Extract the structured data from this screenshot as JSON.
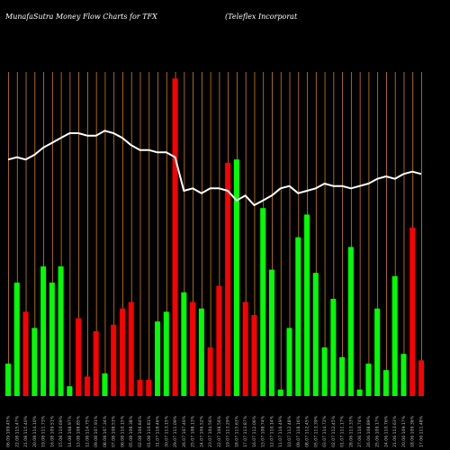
{
  "chart_data": {
    "type": "bar",
    "title": "MunafaSutra  Money Flow  Charts for TFX",
    "subtitle": "(Teleflex Incorporat",
    "colors": {
      "up": "#00ff00",
      "down": "#ff0000",
      "grid": "#d2801a",
      "line": "#ffffff",
      "background": "#000000"
    },
    "grid": true,
    "ylim": [
      0,
      100
    ],
    "categories": [
      "06.09 109.45%",
      "22.08 115.47%",
      "21.08 115.40%",
      "20.08 114.10%",
      "19.08 111.73%",
      "16.08 109.51%",
      "15.08 110.69%",
      "14.08 108.97%",
      "13.08 108.85%",
      "12.08 114.75%",
      "09.08 107.91%",
      "08.08 107.34%",
      "07.08 108.53%",
      "06.08 110.15%",
      "05.08 108.38%",
      "02.08 106.84%",
      "01.08 110.81%",
      "31.07 118.46%",
      "30.07 113.15%",
      "29.07 111.09%",
      "26.07 107.46%",
      "25.07 108.13%",
      "24.07 106.52%",
      "23.07 104.56%",
      "22.07 108.56%",
      "19.07 113.29%",
      "18.07 115.63%",
      "17.07 113.87%",
      "16.07 112.06%",
      "15.07 108.74%",
      "12.07 110.14%",
      "11.07 116.49%",
      "10.07 112.48%",
      "09.07 118.16%",
      "08.07 112.45%",
      "05.07 113.39%",
      "03.07 114.72%",
      "02.07 112.45%",
      "01.07 111.17%",
      "28.06 113.33%",
      "27.06 110.74%",
      "26.06 108.89%",
      "25.06 109.17%",
      "24.06 110.76%",
      "21.06 113.63%",
      "20.06 109.17%",
      "18.06 109.36%",
      "17.06 111.48%"
    ],
    "values": [
      10,
      35,
      26,
      21,
      40,
      35,
      40,
      3,
      24,
      6,
      20,
      7,
      22,
      27,
      29,
      5,
      5,
      23,
      26,
      98,
      32,
      29,
      27,
      15,
      34,
      72,
      73,
      29,
      25,
      58,
      39,
      2,
      21,
      49,
      56,
      38,
      15,
      30,
      12,
      46,
      2,
      10,
      27,
      8,
      37,
      13,
      52,
      11
    ],
    "directions": [
      "up",
      "up",
      "down",
      "up",
      "up",
      "up",
      "up",
      "up",
      "down",
      "down",
      "down",
      "up",
      "down",
      "down",
      "down",
      "down",
      "down",
      "up",
      "up",
      "down",
      "up",
      "down",
      "up",
      "down",
      "down",
      "down",
      "up",
      "down",
      "down",
      "up",
      "up",
      "up",
      "up",
      "up",
      "up",
      "up",
      "up",
      "up",
      "up",
      "up",
      "up",
      "up",
      "up",
      "up",
      "up",
      "up",
      "down",
      "down"
    ],
    "line_values": [
      72,
      73,
      72,
      74,
      77,
      79,
      81,
      83,
      83,
      82,
      82,
      84,
      83,
      81,
      78,
      76,
      76,
      75,
      75,
      73,
      59,
      60,
      58,
      60,
      60,
      59,
      55,
      57,
      53,
      55,
      57,
      60,
      61,
      58,
      59,
      60,
      62,
      61,
      61,
      60,
      61,
      62,
      64,
      65,
      64,
      66,
      67,
      66
    ]
  }
}
